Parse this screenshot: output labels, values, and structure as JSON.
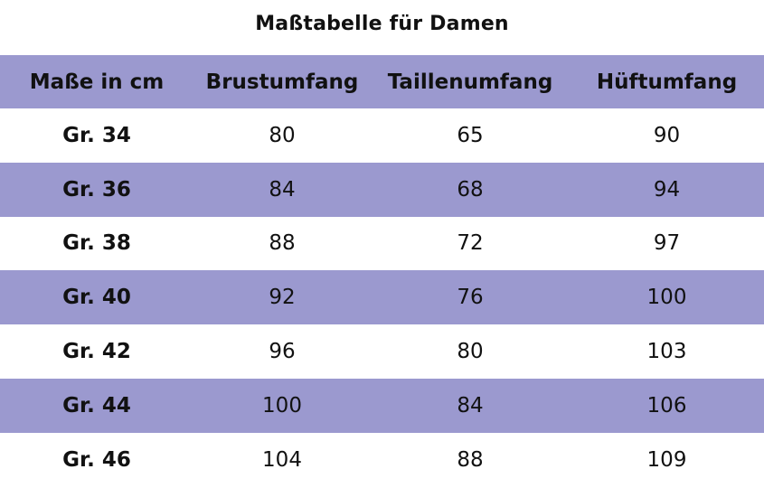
{
  "title": "Maßtabelle für Damen",
  "colors": {
    "band": "#9b99cf",
    "background": "#ffffff",
    "text": "#111111"
  },
  "headers": [
    "Maße in cm",
    "Brustumfang",
    "Taillenumfang",
    "Hüftumfang"
  ],
  "rows": [
    {
      "size": "Gr. 34",
      "brust": "80",
      "taille": "65",
      "huefte": "90"
    },
    {
      "size": "Gr. 36",
      "brust": "84",
      "taille": "68",
      "huefte": "94"
    },
    {
      "size": "Gr. 38",
      "brust": "88",
      "taille": "72",
      "huefte": "97"
    },
    {
      "size": "Gr. 40",
      "brust": "92",
      "taille": "76",
      "huefte": "100"
    },
    {
      "size": "Gr. 42",
      "brust": "96",
      "taille": "80",
      "huefte": "103"
    },
    {
      "size": "Gr. 44",
      "brust": "100",
      "taille": "84",
      "huefte": "106"
    },
    {
      "size": "Gr. 46",
      "brust": "104",
      "taille": "88",
      "huefte": "109"
    }
  ]
}
